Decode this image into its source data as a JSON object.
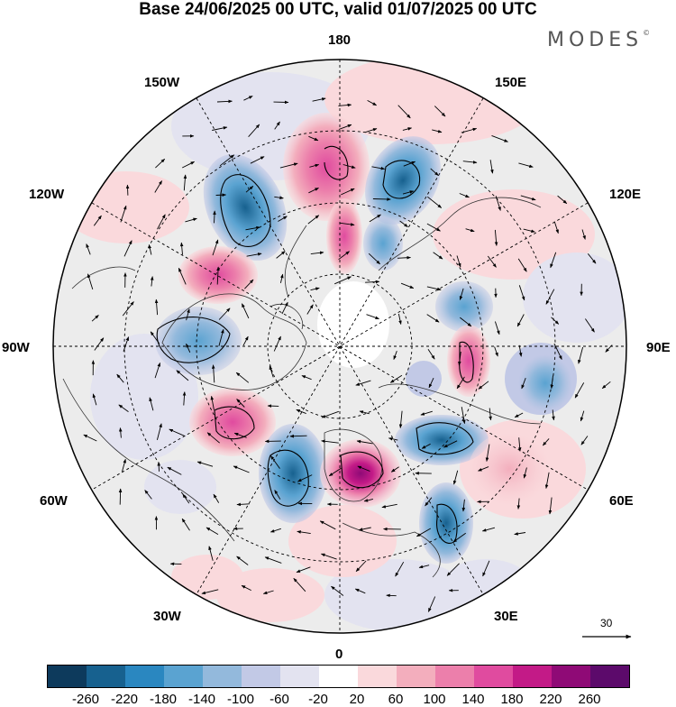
{
  "title": "Base 24/06/2025 00 UTC, valid 01/07/2025 00 UTC",
  "logo": "MODES",
  "logo_mark": "©",
  "longitude_labels": {
    "top": "180",
    "top_left": "150W",
    "top_right": "150E",
    "upper_left": "120W",
    "upper_right": "120E",
    "left": "90W",
    "right": "90E",
    "lower_left": "60W",
    "lower_right": "60E",
    "bottom_left": "30W",
    "bottom_right": "30E",
    "bottom": "0"
  },
  "vector_scale": "30",
  "colorbar": {
    "colors": [
      "#0d3a5c",
      "#17618f",
      "#2a87c0",
      "#5aa3d1",
      "#93b9dc",
      "#c2c9e6",
      "#e3e3f0",
      "#ffffff",
      "#fad9dc",
      "#f3aebd",
      "#ec7fab",
      "#e04b9f",
      "#c31a87",
      "#8f0a76",
      "#5c0a6b"
    ],
    "tick_labels": [
      "-260",
      "-220",
      "-180",
      "-140",
      "-100",
      "-60",
      "-20",
      "20",
      "60",
      "100",
      "140",
      "180",
      "220",
      "260"
    ]
  }
}
